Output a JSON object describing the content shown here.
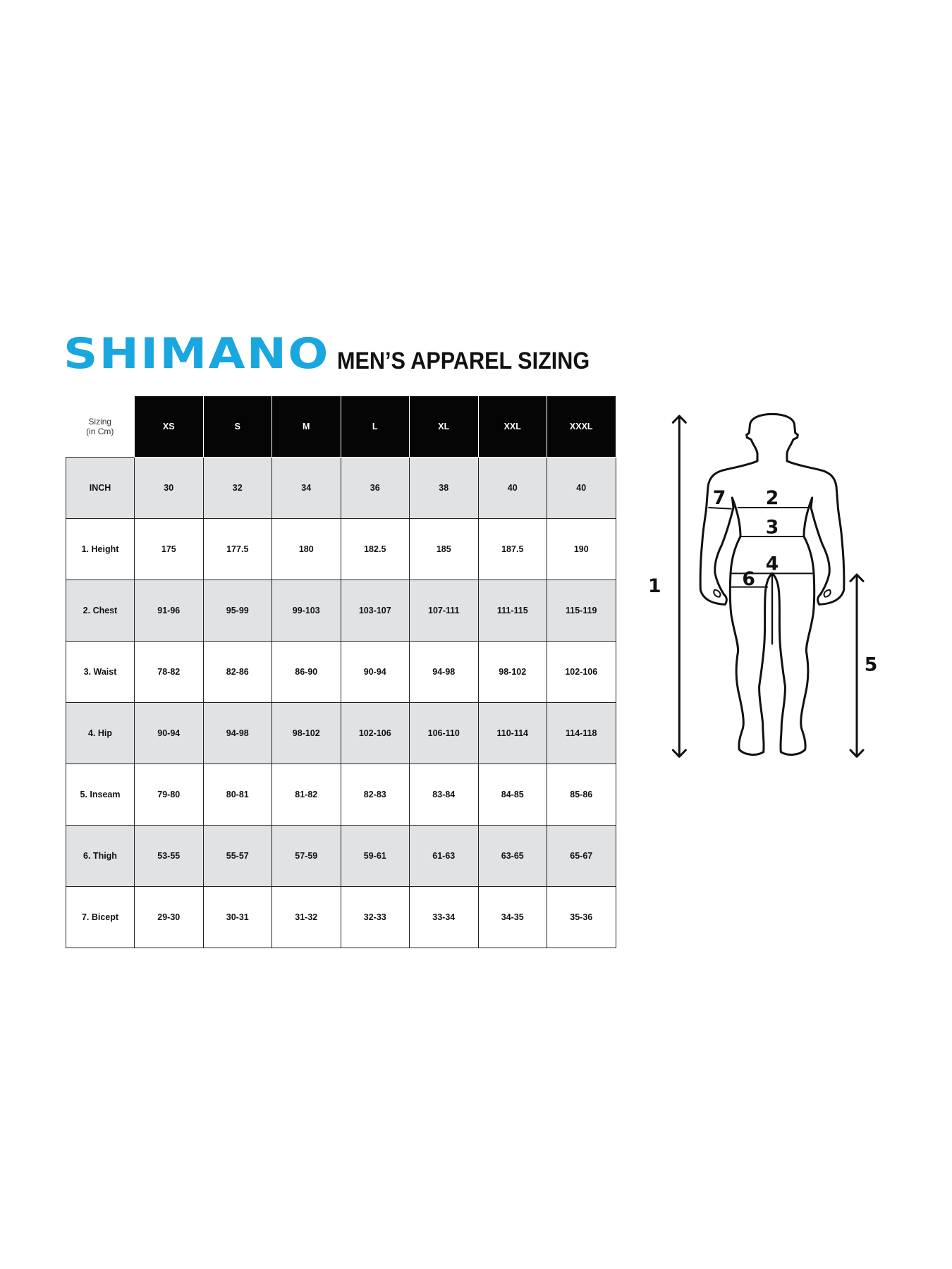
{
  "brand": {
    "logo_text": "SHIMANO",
    "color": "#1aa7e0"
  },
  "title": "MEN’S APPAREL SIZING",
  "table": {
    "corner_label_line1": "Sizing",
    "corner_label_line2": "(in Cm)",
    "sizes": [
      "XS",
      "S",
      "M",
      "L",
      "XL",
      "XXL",
      "XXXL"
    ],
    "rows": [
      {
        "label": "INCH",
        "values": [
          "30",
          "32",
          "34",
          "36",
          "38",
          "40",
          "40"
        ]
      },
      {
        "label": "1. Height",
        "values": [
          "175",
          "177.5",
          "180",
          "182.5",
          "185",
          "187.5",
          "190"
        ]
      },
      {
        "label": "2. Chest",
        "values": [
          "91-96",
          "95-99",
          "99-103",
          "103-107",
          "107-111",
          "111-115",
          "115-119"
        ]
      },
      {
        "label": "3. Waist",
        "values": [
          "78-82",
          "82-86",
          "86-90",
          "90-94",
          "94-98",
          "98-102",
          "102-106"
        ]
      },
      {
        "label": "4. Hip",
        "values": [
          "90-94",
          "94-98",
          "98-102",
          "102-106",
          "106-110",
          "110-114",
          "114-118"
        ]
      },
      {
        "label": "5. Inseam",
        "values": [
          "79-80",
          "80-81",
          "81-82",
          "82-83",
          "83-84",
          "84-85",
          "85-86"
        ]
      },
      {
        "label": "6. Thigh",
        "values": [
          "53-55",
          "55-57",
          "57-59",
          "59-61",
          "61-63",
          "63-65",
          "65-67"
        ]
      },
      {
        "label": "7. Bicept",
        "values": [
          "29-30",
          "30-31",
          "31-32",
          "32-33",
          "33-34",
          "34-35",
          "35-36"
        ]
      }
    ],
    "header_color": "#050505",
    "alt_row_color": "#e1e2e4"
  },
  "figure": {
    "labels": [
      "1",
      "2",
      "3",
      "4",
      "5",
      "6",
      "7"
    ]
  }
}
